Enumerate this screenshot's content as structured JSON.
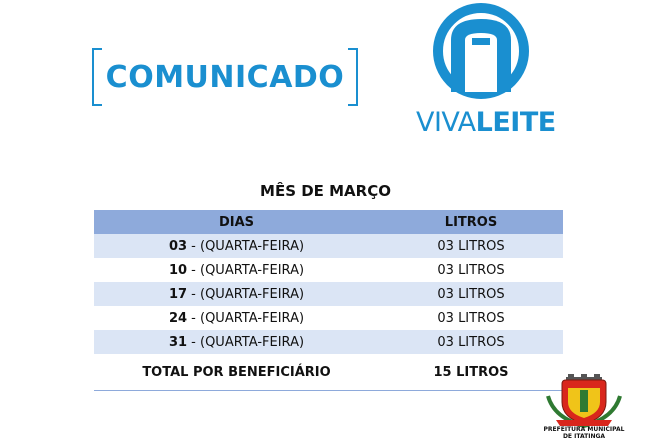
{
  "header": {
    "title": "COMUNICADO",
    "logo": {
      "light": "VIVA",
      "bold": "LEITE"
    }
  },
  "section": {
    "title": "MÊS DE MARÇO"
  },
  "table": {
    "headers": [
      "DIAS",
      "LITROS"
    ],
    "rows": [
      {
        "day_num": "03",
        "day_text": " - (QUARTA-FEIRA)",
        "liters": "03 LITROS"
      },
      {
        "day_num": "10",
        "day_text": " - (QUARTA-FEIRA)",
        "liters": "03 LITROS"
      },
      {
        "day_num": "17",
        "day_text": " - (QUARTA-FEIRA)",
        "liters": "03 LITROS"
      },
      {
        "day_num": "24",
        "day_text": " - (QUARTA-FEIRA)",
        "liters": "03 LITROS"
      },
      {
        "day_num": "31",
        "day_text": " - (QUARTA-FEIRA)",
        "liters": "03 LITROS"
      }
    ],
    "total": {
      "label": "TOTAL POR BENEFICIÁRIO",
      "value": "15 LITROS"
    }
  },
  "footer": {
    "crest_line1": "PREFEITURA MUNICIPAL",
    "crest_line2": "DE ITATINGA"
  },
  "colors": {
    "brand_blue": "#1a8fd0",
    "header_row": "#8eaadb",
    "shaded_row": "#dbe5f5"
  },
  "icons": {
    "brand_logo": "milk-bottle-arch-icon",
    "crest": "municipal-coat-of-arms-icon"
  }
}
